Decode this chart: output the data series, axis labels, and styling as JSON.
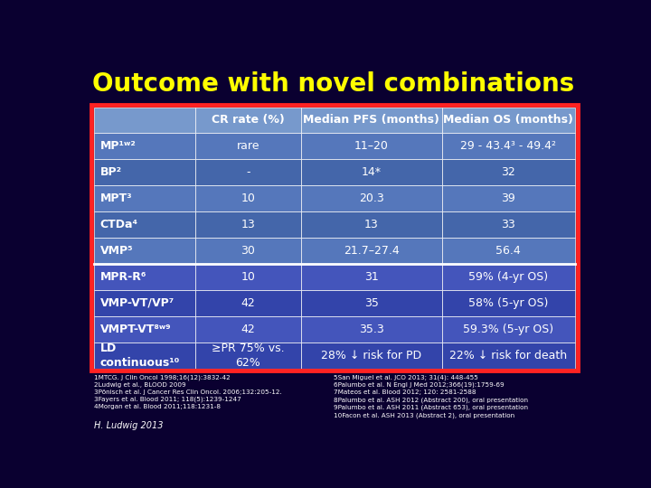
{
  "title": "Outcome with novel combinations",
  "title_color": "#FFFF00",
  "title_fontsize": 20,
  "outer_bg": "#0a0030",
  "table_border_color": "#FF0000",
  "header_bg": "#7799CC",
  "text_color": "#FFFFFF",
  "col_headers": [
    "CR rate (%)",
    "Median PFS (months)",
    "Median OS (months)"
  ],
  "rows": [
    {
      "label": "MP¹ʷ²",
      "cr": "rare",
      "pfs": "11–20",
      "os": "29 - 43.4³ - 49.4²",
      "group": 1
    },
    {
      "label": "BP²",
      "cr": "-",
      "pfs": "14*",
      "os": "32",
      "group": 1
    },
    {
      "label": "MPT³",
      "cr": "10",
      "pfs": "20.3",
      "os": "39",
      "group": 1
    },
    {
      "label": "CTDa⁴",
      "cr": "13",
      "pfs": "13",
      "os": "33",
      "group": 1
    },
    {
      "label": "VMP⁵",
      "cr": "30",
      "pfs": "21.7–27.4",
      "os": "56.4",
      "group": 1
    },
    {
      "label": "MPR-R⁶",
      "cr": "10",
      "pfs": "31",
      "os": "59% (4-yr OS)",
      "group": 2
    },
    {
      "label": "VMP-VT/VP⁷",
      "cr": "42",
      "pfs": "35",
      "os": "58% (5-yr OS)",
      "group": 2
    },
    {
      "label": "VMPT-VT⁸ʷ⁹",
      "cr": "42",
      "pfs": "35.3",
      "os": "59.3% (5-yr OS)",
      "group": 2
    },
    {
      "label": "LD\ncontinuous¹⁰",
      "cr": "≥PR 75% vs.\n62%",
      "pfs": "28% ↓ risk for PD",
      "os": "22% ↓ risk for death",
      "group": 2
    }
  ],
  "row_colors_g1": [
    "#5577BB",
    "#4466AA",
    "#5577BB",
    "#4466AA",
    "#5577BB"
  ],
  "row_colors_g2": [
    "#4455BB",
    "#3344AA",
    "#4455BB",
    "#3344AA"
  ],
  "footnote_left": "1MTCG. J Clin Oncol 1998;16(12):3832-42\n2Ludwig et al., BLOOD 2009\n3Pönisch et al. J Cancer Res Clin Oncol. 2006;132:205-12.\n3Fayers et al. Blood 2011; 118(5):1239-1247\n4Morgan et al. Blood 2011;118:1231-8",
  "footnote_right": "5San Miguel et al. JCO 2013; 31(4): 448-455\n6Palumbo et al. N Engl J Med 2012;366(19):1759-69\n7Mateos et al. Blood 2012; 120: 2581-2588\n8Palumbo et al. ASH 2012 (Abstract 200), oral presentation\n9Palumbo et al. ASH 2011 (Abstract 653), oral presentation\n10Facon et al. ASH 2013 (Abstract 2), oral presentation",
  "footer_label": "H. Ludwig 2013"
}
